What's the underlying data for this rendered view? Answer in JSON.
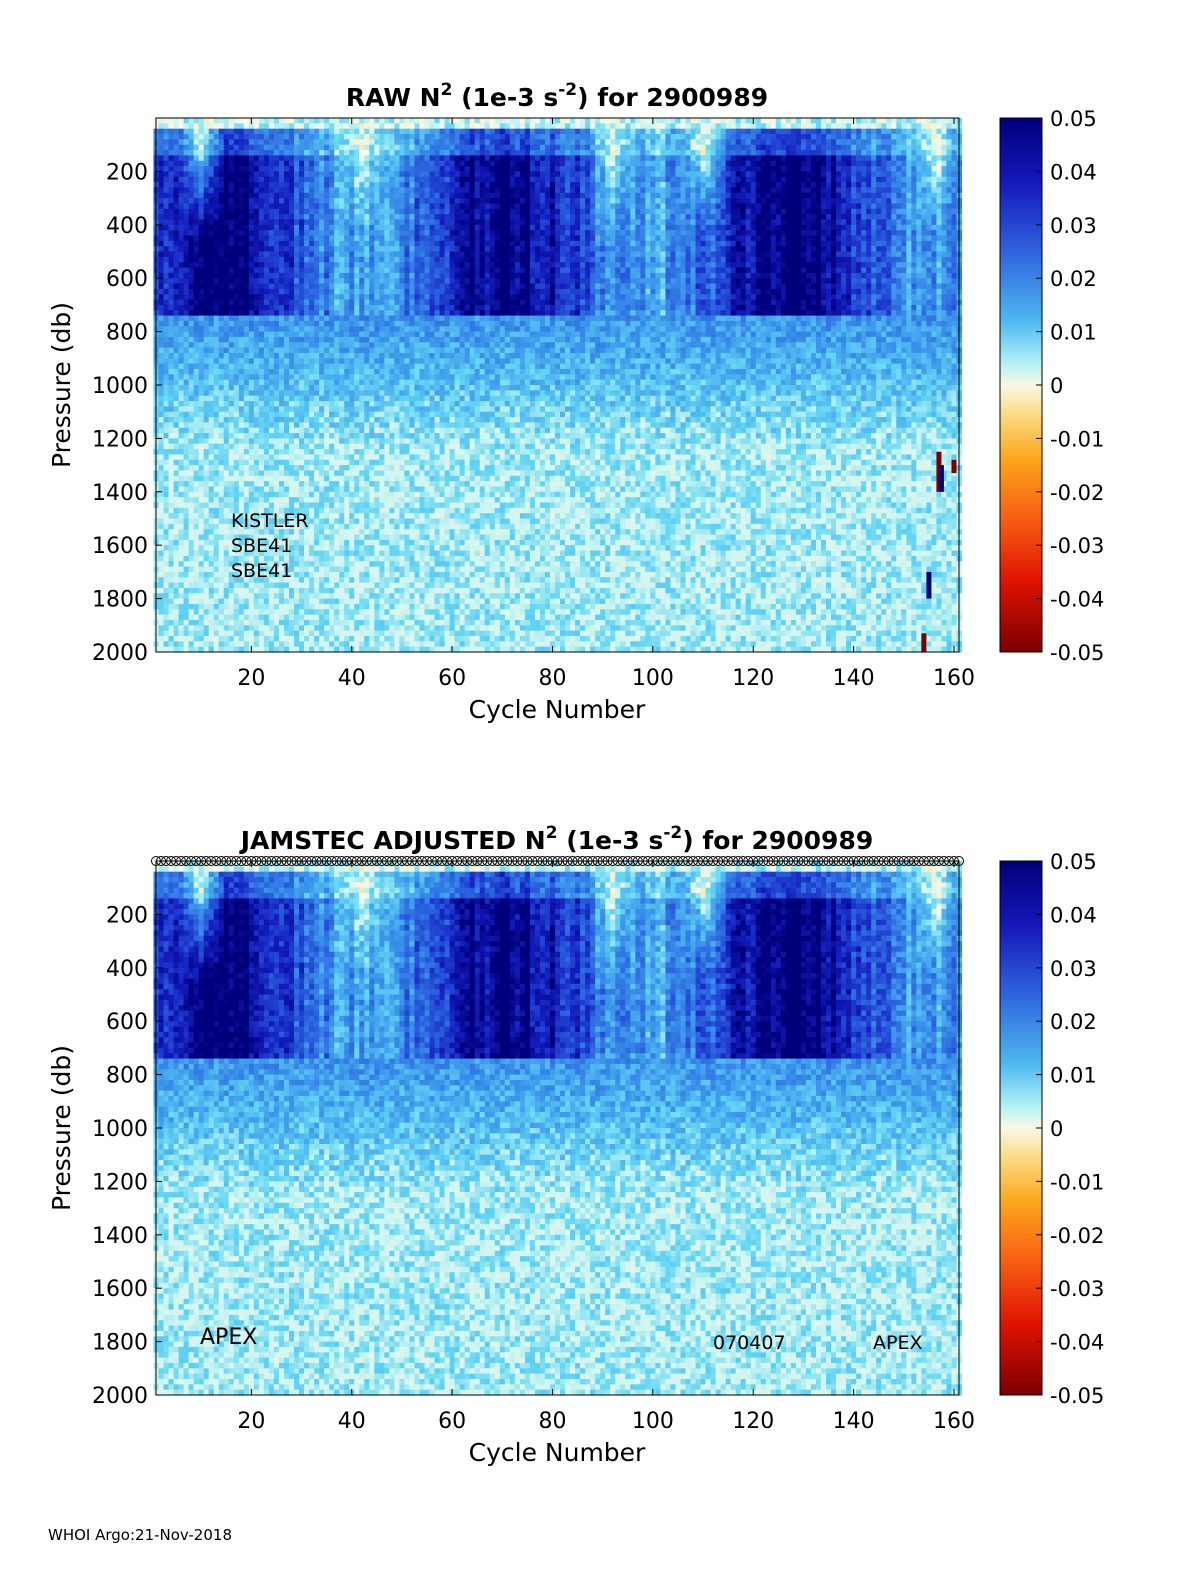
{
  "footer": "WHOI Argo:21-Nov-2018",
  "chart_data": [
    {
      "type": "heatmap",
      "title_prefix": "RAW N",
      "title_sup": "2",
      "title_mid": " (1e-3 s",
      "title_sup2": "-2",
      "title_suffix": ") for 2900989",
      "xlabel": "Cycle Number",
      "ylabel": "Pressure (db)",
      "xlim": [
        1,
        161
      ],
      "ylim": [
        2000,
        0
      ],
      "xticks": [
        20,
        40,
        60,
        80,
        100,
        120,
        140,
        160
      ],
      "yticks": [
        200,
        400,
        600,
        800,
        1000,
        1200,
        1400,
        1600,
        1800,
        2000
      ],
      "colorbar": {
        "range": [
          -0.05,
          0.05
        ],
        "ticks": [
          "0.05",
          "0.04",
          "0.03",
          "0.02",
          "0.01",
          "0",
          "-0.01",
          "-0.02",
          "-0.03",
          "-0.04",
          "-0.05"
        ],
        "colormap": "blue-cyan-white-yellow-red (jet-like diverging)"
      },
      "value_pattern": {
        "surface_gaps_cycles": [
          10,
          42,
          92,
          110,
          156
        ],
        "strong_layer_db": [
          150,
          750
        ],
        "strong_value": 0.045,
        "deep_value": 0.006
      },
      "outliers": [
        {
          "cycle": 157,
          "p_from": 1250,
          "p_to": 1400,
          "value": -0.05
        },
        {
          "cycle": 157.5,
          "p_from": 1300,
          "p_to": 1400,
          "value": 0.05
        },
        {
          "cycle": 160,
          "p_from": 1280,
          "p_to": 1330,
          "value": -0.05
        },
        {
          "cycle": 155,
          "p_from": 1700,
          "p_to": 1800,
          "value": 0.05
        },
        {
          "cycle": 154,
          "p_from": 1930,
          "p_to": 2000,
          "value": -0.05
        }
      ],
      "annotations": [
        "KISTLER",
        "SBE41",
        "SBE41"
      ]
    },
    {
      "type": "heatmap",
      "title_prefix": "JAMSTEC  ADJUSTED N",
      "title_sup": "2",
      "title_mid": " (1e-3 s",
      "title_sup2": "-2",
      "title_suffix": ") for 2900989",
      "xlabel": "Cycle Number",
      "ylabel": "Pressure (db)",
      "xlim": [
        1,
        161
      ],
      "ylim": [
        2000,
        0
      ],
      "xticks": [
        20,
        40,
        60,
        80,
        100,
        120,
        140,
        160
      ],
      "yticks": [
        200,
        400,
        600,
        800,
        1000,
        1200,
        1400,
        1600,
        1800,
        2000
      ],
      "colorbar": {
        "range": [
          -0.05,
          0.05
        ],
        "ticks": [
          "0.05",
          "0.04",
          "0.03",
          "0.02",
          "0.01",
          "0",
          "-0.01",
          "-0.02",
          "-0.03",
          "-0.04",
          "-0.05"
        ],
        "colormap": "blue-cyan-white-yellow-red (jet-like diverging)"
      },
      "value_pattern": {
        "surface_gaps_cycles": [
          10,
          42,
          92,
          110,
          156
        ],
        "strong_layer_db": [
          150,
          750
        ],
        "strong_value": 0.045,
        "deep_value": 0.006
      },
      "outliers": [],
      "top_markers": "open circles at every cycle 1-161 along top edge",
      "annotations": [
        "APEX",
        "070407",
        "APEX"
      ]
    }
  ]
}
